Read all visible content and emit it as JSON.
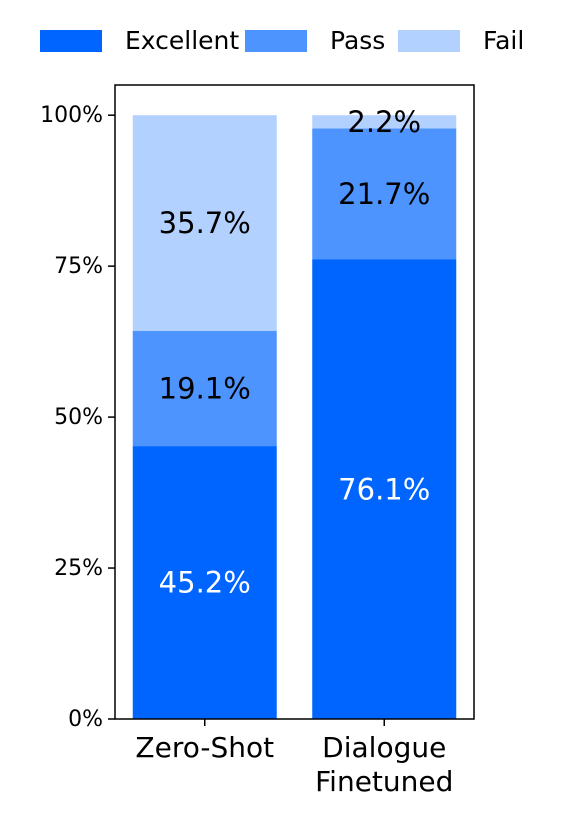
{
  "chart_data": {
    "type": "stacked-bar",
    "categories": [
      "Zero-Shot",
      "Dialogue Finetuned"
    ],
    "series": [
      {
        "name": "Excellent",
        "color": "#0064ff",
        "label_color": "#ffffff",
        "values": [
          45.2,
          76.1
        ],
        "value_labels": [
          "45.2%",
          "76.1%"
        ]
      },
      {
        "name": "Pass",
        "color": "#4d94ff",
        "label_color": "#000000",
        "values": [
          19.1,
          21.7
        ],
        "value_labels": [
          "19.1%",
          "21.7%"
        ]
      },
      {
        "name": "Fail",
        "color": "#b3d1ff",
        "label_color": "#000000",
        "values": [
          35.7,
          2.2
        ],
        "value_labels": [
          "35.7%",
          "2.2%"
        ]
      }
    ],
    "ylim": [
      0,
      105
    ],
    "yticks": [
      {
        "value": 0,
        "label": "0%"
      },
      {
        "value": 25,
        "label": "25%"
      },
      {
        "value": 50,
        "label": "50%"
      },
      {
        "value": 75,
        "label": "75%"
      },
      {
        "value": 100,
        "label": "100%"
      }
    ],
    "grid": false,
    "legend": "top"
  }
}
